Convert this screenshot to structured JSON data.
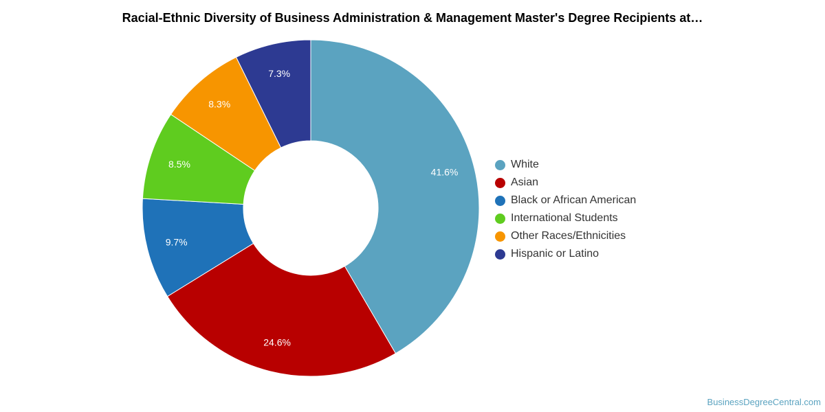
{
  "chart_data": {
    "type": "pie",
    "title": "Racial-Ethnic Diversity of Business Administration & Management Master's Degree Recipients at…",
    "donut": true,
    "legend_position": "right",
    "categories": [
      "White",
      "Asian",
      "Black or African American",
      "International Students",
      "Other Races/Ethnicities",
      "Hispanic or Latino"
    ],
    "values": [
      41.6,
      24.6,
      9.7,
      8.5,
      8.3,
      7.3
    ],
    "labels": [
      "41.6%",
      "24.6%",
      "9.7%",
      "8.5%",
      "8.3%",
      "7.3%"
    ],
    "colors": [
      "#5ba3c0",
      "#b80000",
      "#1f72b8",
      "#5fcc1f",
      "#f79500",
      "#2d3a92"
    ]
  },
  "watermark": "BusinessDegreeCentral.com"
}
